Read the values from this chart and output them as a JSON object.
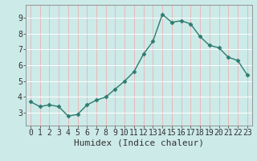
{
  "x": [
    0,
    1,
    2,
    3,
    4,
    5,
    6,
    7,
    8,
    9,
    10,
    11,
    12,
    13,
    14,
    15,
    16,
    17,
    18,
    19,
    20,
    21,
    22,
    23
  ],
  "y": [
    3.7,
    3.4,
    3.5,
    3.4,
    2.8,
    2.9,
    3.5,
    3.8,
    4.0,
    4.5,
    5.0,
    5.6,
    6.7,
    7.5,
    9.2,
    8.7,
    8.8,
    8.6,
    7.8,
    7.25,
    7.1,
    6.5,
    6.3,
    5.4
  ],
  "xlabel": "Humidex (Indice chaleur)",
  "bg_color": "#cceae8",
  "line_color": "#2e7b6e",
  "hgrid_color": "#e8b8b8",
  "vgrid_color": "#ffffff",
  "ylim": [
    2.2,
    9.8
  ],
  "xlim": [
    -0.5,
    23.5
  ],
  "yticks": [
    3,
    4,
    5,
    6,
    7,
    8,
    9
  ],
  "xticks": [
    0,
    1,
    2,
    3,
    4,
    5,
    6,
    7,
    8,
    9,
    10,
    11,
    12,
    13,
    14,
    15,
    16,
    17,
    18,
    19,
    20,
    21,
    22,
    23
  ],
  "xtick_labels": [
    "0",
    "1",
    "2",
    "3",
    "4",
    "5",
    "6",
    "7",
    "8",
    "9",
    "10",
    "11",
    "12",
    "13",
    "14",
    "15",
    "16",
    "17",
    "18",
    "19",
    "20",
    "21",
    "22",
    "23"
  ],
  "marker": "D",
  "markersize": 2.5,
  "linewidth": 1.0,
  "xlabel_fontsize": 8,
  "tick_fontsize": 7,
  "spine_color": "#888888"
}
